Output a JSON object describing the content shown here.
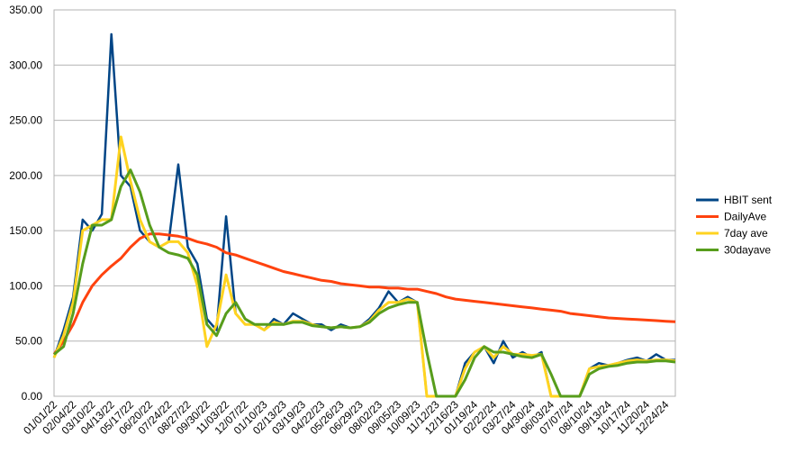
{
  "chart_data": {
    "type": "line",
    "categories": [
      "01/01/22",
      null,
      "02/04/22",
      null,
      "03/10/22",
      null,
      "04/13/22",
      null,
      "05/17/22",
      null,
      "06/20/22",
      null,
      "07/24/22",
      null,
      "08/27/22",
      null,
      "09/30/22",
      null,
      "11/03/22",
      null,
      "12/07/22",
      null,
      "01/10/23",
      null,
      "02/13/23",
      null,
      "03/19/23",
      null,
      "04/22/23",
      null,
      "05/26/23",
      null,
      "06/29/23",
      null,
      "08/02/23",
      null,
      "09/05/23",
      null,
      "10/09/23",
      null,
      "11/12/23",
      null,
      "12/16/23",
      null,
      "01/19/24",
      null,
      "02/22/24",
      null,
      "03/27/24",
      null,
      "04/30/24",
      null,
      "06/03/24",
      null,
      "07/07/24",
      null,
      "08/10/24",
      null,
      "09/13/24",
      null,
      "10/17/24",
      null,
      "11/20/24",
      null,
      "12/24/24",
      null
    ],
    "series": [
      {
        "name": "HBIT sent",
        "color": "#004586",
        "values": [
          35,
          60,
          90,
          160,
          150,
          165,
          328,
          200,
          190,
          150,
          140,
          135,
          140,
          210,
          135,
          120,
          70,
          60,
          163,
          75,
          65,
          65,
          60,
          70,
          65,
          75,
          70,
          65,
          65,
          60,
          65,
          62,
          63,
          70,
          80,
          95,
          85,
          90,
          85,
          0,
          0,
          0,
          0,
          30,
          40,
          45,
          30,
          50,
          35,
          40,
          35,
          40,
          0,
          0,
          0,
          0,
          25,
          30,
          28,
          30,
          33,
          35,
          32,
          38,
          33,
          33
        ]
      },
      {
        "name": "DailyAve",
        "color": "#ff420e",
        "values": [
          38,
          50,
          65,
          85,
          100,
          110,
          118,
          125,
          135,
          143,
          147,
          147,
          146,
          145,
          143,
          140,
          138,
          135,
          130,
          128,
          125,
          122,
          119,
          116,
          113,
          111,
          109,
          107,
          105,
          104,
          102,
          101,
          100,
          99,
          99,
          98,
          98,
          97,
          97,
          95,
          93,
          90,
          88,
          87,
          86,
          85,
          84,
          83,
          82,
          81,
          80,
          79,
          78,
          77,
          75,
          74,
          73,
          72,
          71,
          70.5,
          70,
          69.5,
          69,
          68.5,
          68,
          67.5
        ]
      },
      {
        "name": "7day ave",
        "color": "#ffd320",
        "values": [
          35,
          55,
          85,
          150,
          155,
          160,
          160,
          235,
          195,
          160,
          140,
          135,
          140,
          140,
          130,
          100,
          45,
          65,
          110,
          75,
          65,
          65,
          60,
          67,
          65,
          68,
          68,
          65,
          63,
          62,
          63,
          62,
          63,
          68,
          78,
          85,
          85,
          88,
          85,
          0,
          0,
          0,
          0,
          25,
          40,
          45,
          35,
          45,
          38,
          38,
          37,
          38,
          0,
          0,
          0,
          0,
          25,
          27,
          28,
          30,
          32,
          33,
          32,
          33,
          33,
          32
        ]
      },
      {
        "name": "30dayave",
        "color": "#579d1c",
        "values": [
          38,
          45,
          75,
          120,
          155,
          155,
          160,
          190,
          205,
          185,
          155,
          135,
          130,
          128,
          125,
          110,
          65,
          55,
          75,
          85,
          70,
          65,
          65,
          65,
          65,
          67,
          67,
          64,
          63,
          62,
          63,
          62,
          63,
          67,
          75,
          80,
          83,
          85,
          85,
          40,
          0,
          0,
          0,
          15,
          35,
          45,
          40,
          40,
          38,
          36,
          35,
          38,
          20,
          0,
          0,
          0,
          20,
          25,
          27,
          28,
          30,
          31,
          31,
          32,
          32,
          31
        ]
      }
    ],
    "ylim": [
      0,
      350
    ],
    "yticks": [
      {
        "value": 0,
        "label": "0.00"
      },
      {
        "value": 50,
        "label": "50.00"
      },
      {
        "value": 100,
        "label": "100.00"
      },
      {
        "value": 150,
        "label": "150.00"
      },
      {
        "value": 200,
        "label": "200.00"
      },
      {
        "value": 250,
        "label": "250.00"
      },
      {
        "value": 300,
        "label": "300.00"
      },
      {
        "value": 350,
        "label": "350.00"
      }
    ],
    "grid": true,
    "legend": "right"
  }
}
